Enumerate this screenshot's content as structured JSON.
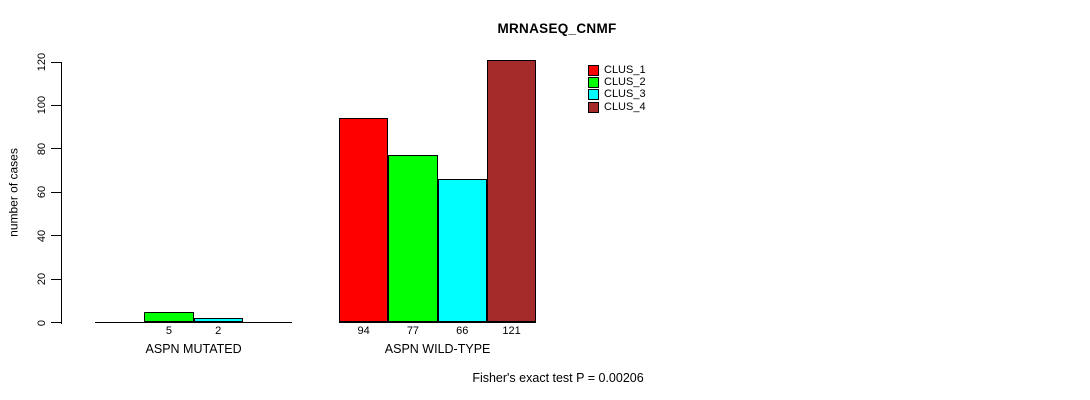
{
  "title": "MRNASEQ_CNMF",
  "y_axis": {
    "label": "number of cases",
    "ticks": [
      0,
      20,
      40,
      60,
      80,
      100,
      120
    ]
  },
  "legend": {
    "items": [
      {
        "label": "CLUS_1",
        "color": "#FF0000"
      },
      {
        "label": "CLUS_2",
        "color": "#00FF00"
      },
      {
        "label": "CLUS_3",
        "color": "#00FFFF"
      },
      {
        "label": "CLUS_4",
        "color": "#A52A2A"
      }
    ]
  },
  "footnote": "Fisher's exact test P = 0.00206",
  "chart_data": {
    "type": "bar",
    "title": "MRNASEQ_CNMF",
    "xlabel": "",
    "ylabel": "number of cases",
    "ylim": [
      0,
      120
    ],
    "yticks": [
      0,
      20,
      40,
      60,
      80,
      100,
      120
    ],
    "grid": false,
    "legend_position": "top-right",
    "categories": [
      "ASPN MUTATED",
      "ASPN WILD-TYPE"
    ],
    "series": [
      {
        "name": "CLUS_1",
        "color": "#FF0000",
        "values": [
          0,
          94
        ]
      },
      {
        "name": "CLUS_2",
        "color": "#00FF00",
        "values": [
          5,
          77
        ]
      },
      {
        "name": "CLUS_3",
        "color": "#00FFFF",
        "values": [
          2,
          66
        ]
      },
      {
        "name": "CLUS_4",
        "color": "#A52A2A",
        "values": [
          0,
          121
        ]
      }
    ],
    "bar_value_labels_shown": [
      "5",
      "2",
      "94",
      "77",
      "66",
      "121"
    ],
    "annotation": "Fisher's exact test P = 0.00206"
  }
}
